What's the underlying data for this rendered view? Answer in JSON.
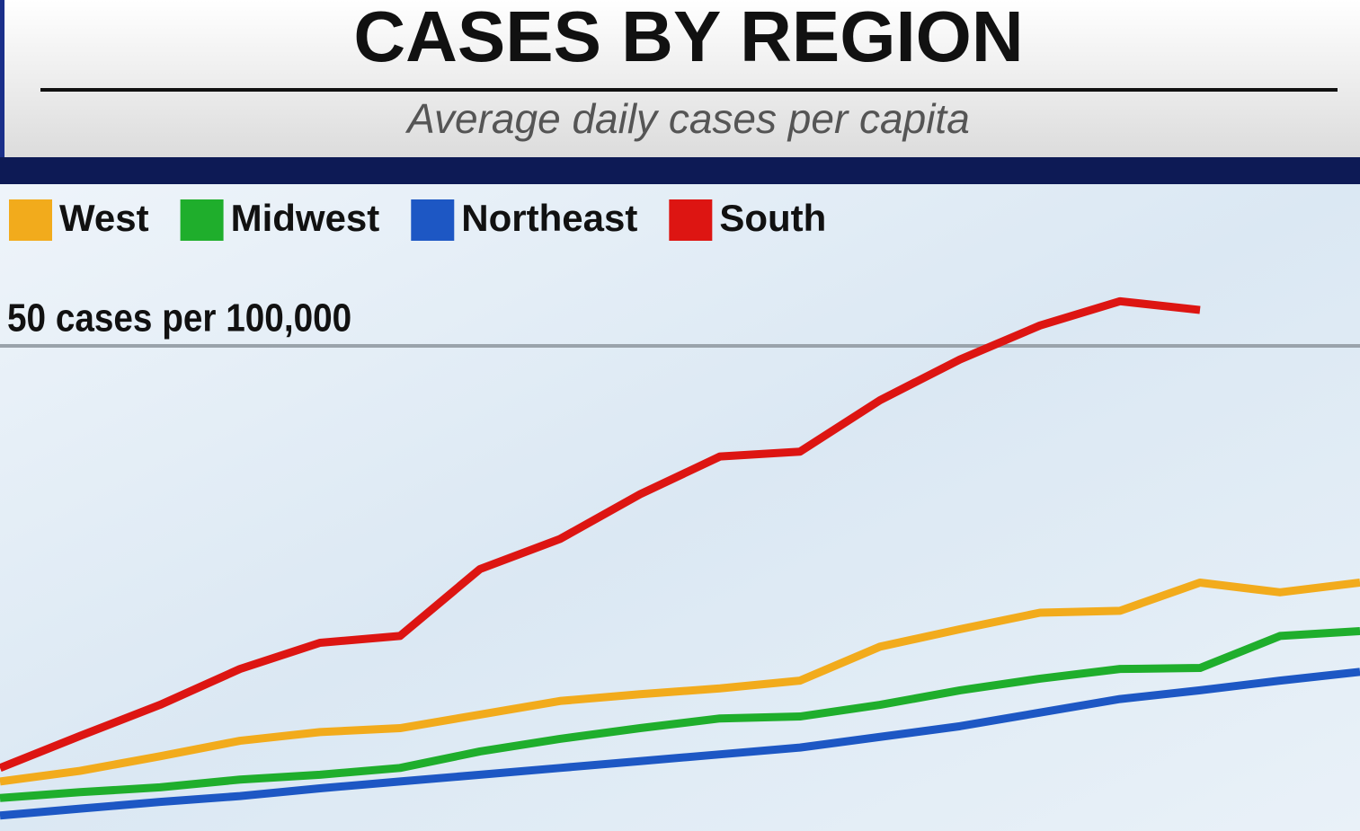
{
  "chart_data": {
    "type": "line",
    "title": "CASES BY REGION",
    "subtitle": "Average daily cases per capita",
    "categories": [
      null,
      null,
      null,
      null,
      null,
      null,
      null,
      null,
      null,
      null,
      null,
      null,
      null,
      null,
      null,
      null,
      null,
      null
    ],
    "series": [
      {
        "name": "West",
        "color": "#f2ab1c",
        "values": [
          5.1,
          6.2,
          7.7,
          9.3,
          10.2,
          10.6,
          12.0,
          13.4,
          14.1,
          14.7,
          15.5,
          19.0,
          20.8,
          22.5,
          22.7,
          25.6,
          24.6,
          25.6
        ]
      },
      {
        "name": "Midwest",
        "color": "#1fae2c",
        "values": [
          3.4,
          4.0,
          4.5,
          5.3,
          5.8,
          6.5,
          8.2,
          9.5,
          10.6,
          11.6,
          11.8,
          13.0,
          14.5,
          15.7,
          16.7,
          16.8,
          20.1,
          20.6
        ]
      },
      {
        "name": "Northeast",
        "color": "#1d57c4",
        "values": [
          1.6,
          2.3,
          3.0,
          3.6,
          4.4,
          5.1,
          5.8,
          6.5,
          7.2,
          7.9,
          8.6,
          9.7,
          10.8,
          12.2,
          13.6,
          14.5,
          15.5,
          16.4
        ]
      },
      {
        "name": "South",
        "color": "#dd1512",
        "values": [
          6.5,
          9.8,
          13.0,
          16.7,
          19.4,
          20.1,
          27.0,
          30.1,
          34.7,
          38.6,
          39.1,
          44.4,
          48.6,
          52.1,
          54.6,
          53.7,
          null,
          null
        ]
      }
    ],
    "ylim": [
      0,
      60
    ],
    "yticks": [
      {
        "value": 50,
        "label": "50 cases per 100,000"
      }
    ],
    "grid": true
  }
}
